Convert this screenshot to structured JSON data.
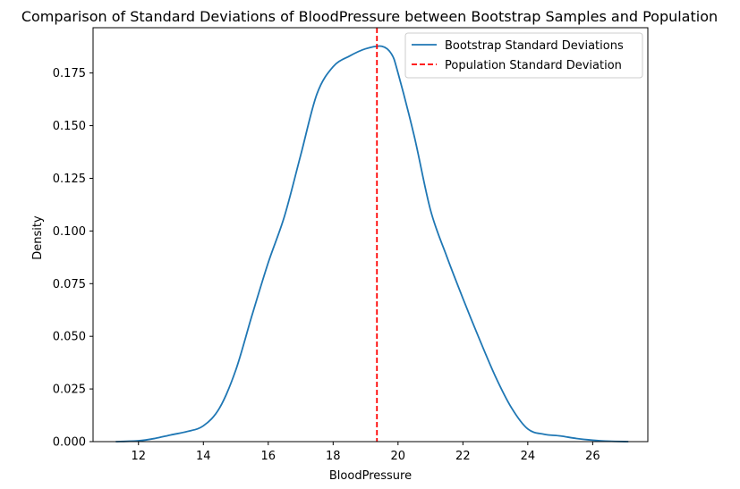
{
  "chart_data": {
    "type": "line",
    "title": "Comparison of Standard Deviations of BloodPressure between Bootstrap Samples and Population",
    "xlabel": "BloodPressure",
    "ylabel": "Density",
    "xlim": [
      10.6,
      27.7
    ],
    "ylim": [
      0,
      0.1965
    ],
    "xticks": [
      12,
      14,
      16,
      18,
      20,
      22,
      24,
      26
    ],
    "yticks": [
      0.0,
      0.025,
      0.05,
      0.075,
      0.1,
      0.125,
      0.15,
      0.175
    ],
    "ytick_labels": [
      "0.000",
      "0.025",
      "0.050",
      "0.075",
      "0.100",
      "0.125",
      "0.150",
      "0.175"
    ],
    "grid": false,
    "legend_position": "top-right",
    "series": [
      {
        "name": "Bootstrap Standard Deviations",
        "color": "#1f77b4",
        "style": "solid",
        "x": [
          11.3,
          12.0,
          12.5,
          13.0,
          13.5,
          14.0,
          14.5,
          15.0,
          15.5,
          16.0,
          16.5,
          17.0,
          17.5,
          18.0,
          18.5,
          19.0,
          19.5,
          19.8,
          20.0,
          20.5,
          21.0,
          21.5,
          22.0,
          22.5,
          23.0,
          23.5,
          24.0,
          24.5,
          25.0,
          25.5,
          26.0,
          26.5,
          27.1
        ],
        "y": [
          0.0,
          0.0004,
          0.0015,
          0.0032,
          0.0048,
          0.0075,
          0.016,
          0.034,
          0.06,
          0.085,
          0.107,
          0.136,
          0.165,
          0.178,
          0.183,
          0.1865,
          0.1877,
          0.184,
          0.175,
          0.145,
          0.11,
          0.088,
          0.068,
          0.049,
          0.031,
          0.016,
          0.006,
          0.0035,
          0.0027,
          0.0015,
          0.0007,
          0.0002,
          0.0
        ]
      },
      {
        "name": "Population Standard Deviation",
        "color": "#ff0000",
        "style": "dashed",
        "vline_x": 19.35
      }
    ]
  }
}
